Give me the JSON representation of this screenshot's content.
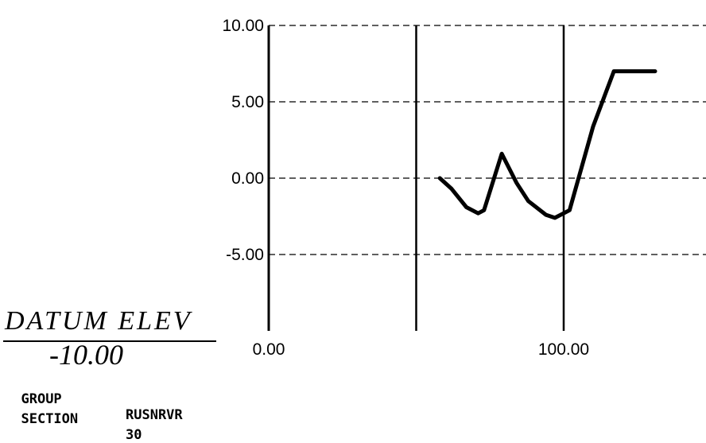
{
  "chart_data": {
    "type": "line",
    "title": "",
    "xlabel": "",
    "ylabel": "",
    "xlim": [
      0,
      150
    ],
    "ylim": [
      -10,
      10
    ],
    "x_ticks": [
      {
        "value": 0,
        "label": "0.00"
      },
      {
        "value": 100,
        "label": "100.00"
      }
    ],
    "x_gridlines": [
      0,
      50,
      100
    ],
    "y_ticks": [
      {
        "value": 10,
        "label": "10.00"
      },
      {
        "value": 5,
        "label": "5.00"
      },
      {
        "value": 0,
        "label": "0.00"
      },
      {
        "value": -5,
        "label": "-5.00"
      }
    ],
    "grid": true,
    "series": [
      {
        "color": "#000000",
        "x": [
          58,
          62,
          67,
          71,
          73,
          79,
          84,
          88,
          94,
          97,
          102,
          110,
          117,
          121,
          131
        ],
        "y": [
          0.0,
          -0.7,
          -1.9,
          -2.3,
          -2.1,
          1.6,
          -0.3,
          -1.5,
          -2.4,
          -2.6,
          -2.1,
          3.4,
          7.0,
          7.0,
          7.0
        ]
      }
    ]
  },
  "datum": {
    "label": "DATUM ELEV",
    "value": "-10.00"
  },
  "info": {
    "group_label": "GROUP",
    "group_value": "RUSNRVR",
    "section_label": "SECTION",
    "section_value": "30"
  }
}
